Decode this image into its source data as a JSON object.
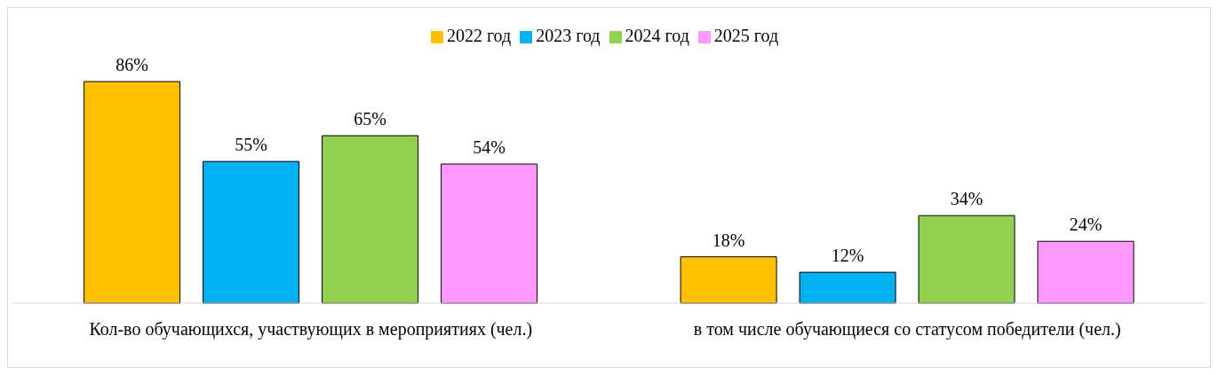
{
  "chart_data": {
    "type": "bar",
    "categories": [
      "Кол-во обучающихся, участвующих в мероприятиях (чел.)",
      "в том числе обучающиеся со статусом победители (чел.)"
    ],
    "series": [
      {
        "name": "2022 год",
        "color": "#ffc000",
        "values": [
          86,
          18
        ],
        "value_labels": [
          "86%",
          "18%"
        ]
      },
      {
        "name": "2023 год",
        "color": "#00b0f0",
        "values": [
          55,
          12
        ],
        "value_labels": [
          "55%",
          "12%"
        ]
      },
      {
        "name": "2024 год",
        "color": "#92d050",
        "values": [
          65,
          34
        ],
        "value_labels": [
          "65%",
          "34%"
        ]
      },
      {
        "name": "2025 год",
        "color": "#ff99ff",
        "values": [
          54,
          24
        ],
        "value_labels": [
          "54%",
          "24%"
        ]
      }
    ],
    "legend": "top"
  }
}
